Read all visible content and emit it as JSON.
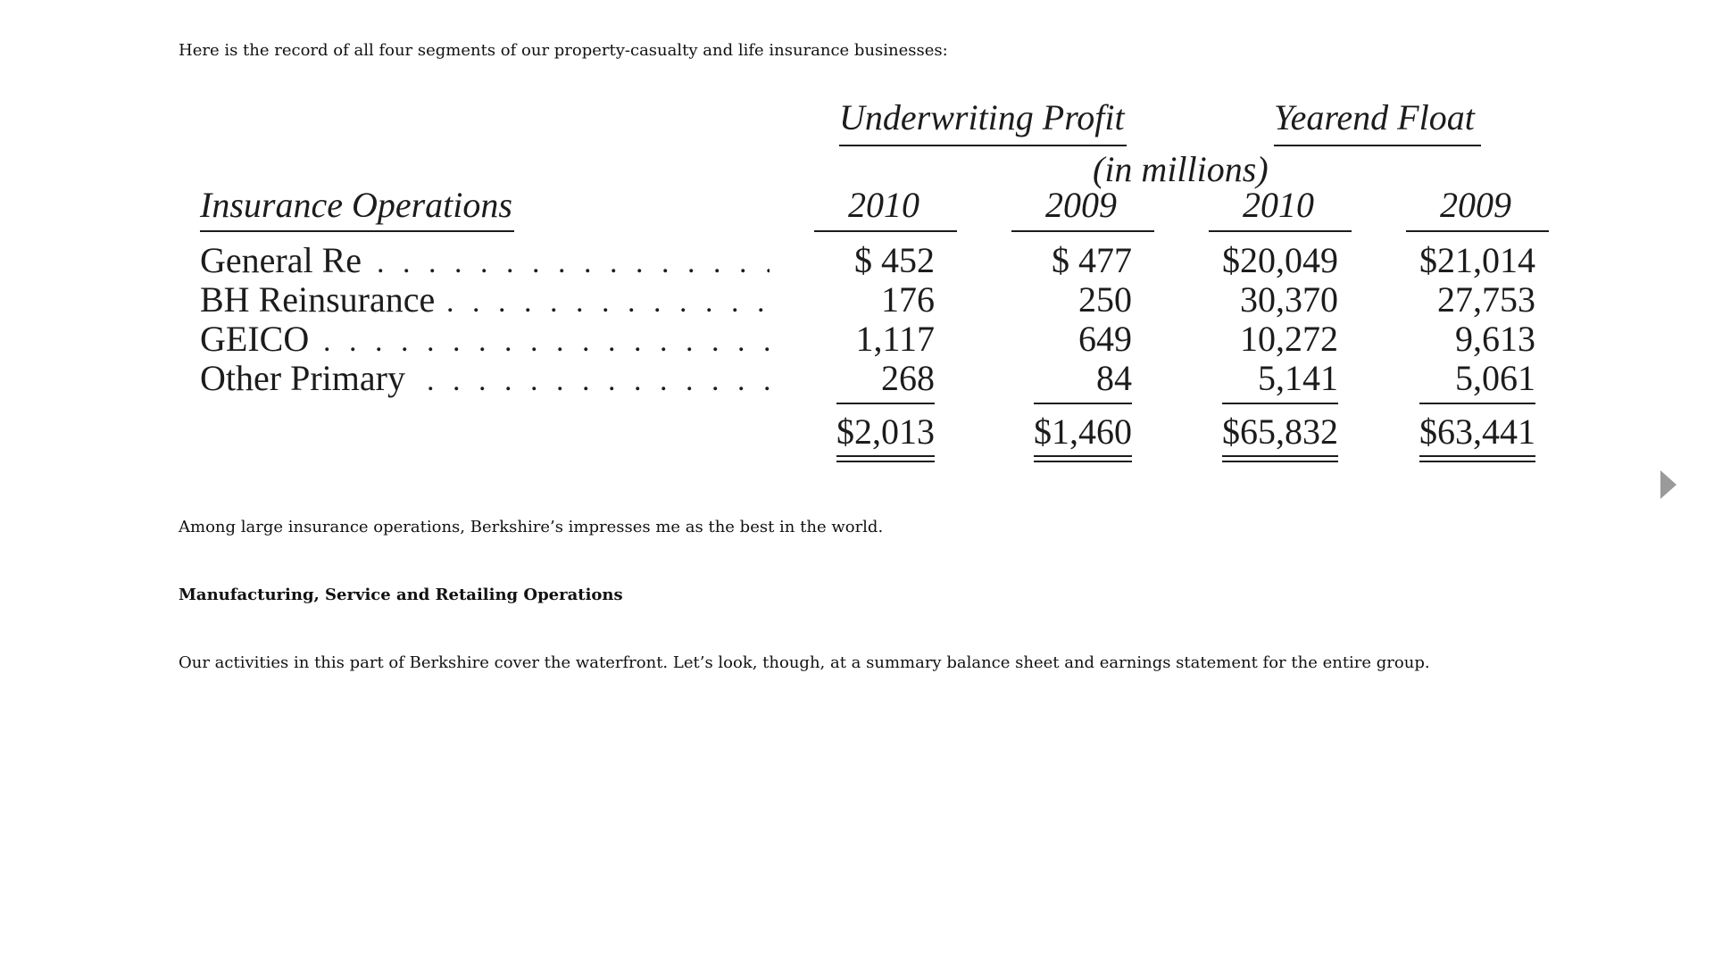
{
  "intro": "Here is the record of all four segments of our property-casualty and life insurance businesses:",
  "table": {
    "group_headers": {
      "underwriting_profit": "Underwriting Profit",
      "yearend_float": "Yearend Float"
    },
    "units": "(in millions)",
    "row_header": "Insurance Operations",
    "years": [
      "2010",
      "2009",
      "2010",
      "2009"
    ],
    "rows": [
      {
        "label": "General Re",
        "values": [
          "$ 452",
          "$ 477",
          "$20,049",
          "$21,014"
        ]
      },
      {
        "label": "BH Reinsurance",
        "values": [
          "176",
          "250",
          "30,370",
          "27,753"
        ]
      },
      {
        "label": "GEICO",
        "values": [
          "1,117",
          "649",
          "10,272",
          "9,613"
        ]
      },
      {
        "label": "Other Primary",
        "values": [
          "268",
          "84",
          "5,141",
          "5,061"
        ]
      }
    ],
    "totals": [
      "$2,013",
      "$1,460",
      "$65,832",
      "$63,441"
    ],
    "leader_dots": ". . . . . . . . . . . . . . . . . . . . . . . . . ."
  },
  "closing": "Among large insurance operations, Berkshire’s impresses me as the best in the world.",
  "section_heading": "Manufacturing, Service and Retailing Operations",
  "body": "Our activities in this part of Berkshire cover the waterfront. Let’s look, though, at a summary balance sheet and earnings statement for the entire group.",
  "navigation": {
    "next_icon": "next-page-icon",
    "arrow_color": "#9a9a9a"
  }
}
